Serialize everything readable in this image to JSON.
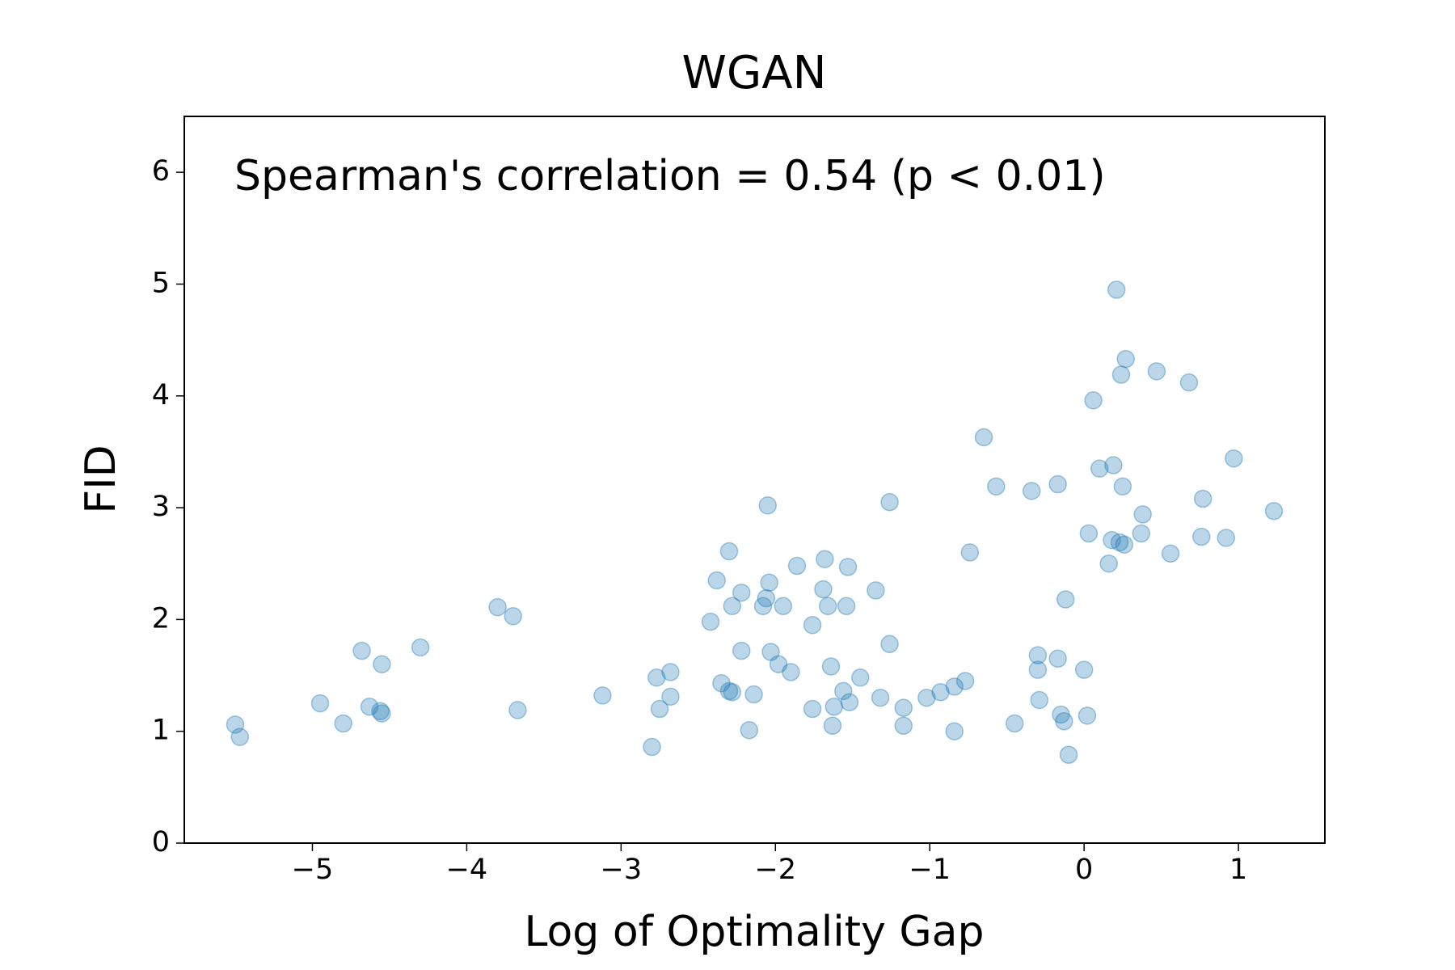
{
  "chart_data": {
    "type": "scatter",
    "title": "WGAN",
    "annotation": "Spearman's correlation = 0.54 (p < 0.01)",
    "xlabel": "Log of Optimality Gap",
    "ylabel": "FID",
    "color": "#1f77b4",
    "alpha": 0.3,
    "xlim": [
      -5.83,
      1.56
    ],
    "ylim": [
      0,
      6.5
    ],
    "xticks": [
      {
        "value": -5,
        "label": "−5"
      },
      {
        "value": -4,
        "label": "−4"
      },
      {
        "value": -3,
        "label": "−3"
      },
      {
        "value": -2,
        "label": "−2"
      },
      {
        "value": -1,
        "label": "−1"
      },
      0,
      1
    ],
    "yticks": [
      0,
      1,
      2,
      3,
      4,
      5,
      6
    ],
    "x": [
      -5.5,
      -5.47,
      -4.95,
      -4.8,
      -4.68,
      -4.63,
      -4.56,
      -4.55,
      -4.55,
      -4.3,
      -3.8,
      -3.7,
      -3.67,
      -3.12,
      -2.8,
      -2.77,
      -2.75,
      -2.68,
      -2.68,
      -2.42,
      -2.38,
      -2.35,
      -2.3,
      -2.3,
      -2.28,
      -2.28,
      -2.22,
      -2.22,
      -2.17,
      -2.14,
      -2.05,
      -2.08,
      -2.06,
      -2.04,
      -2.03,
      -1.98,
      -1.95,
      -1.9,
      -1.86,
      -1.76,
      -1.76,
      -1.69,
      -1.68,
      -1.66,
      -1.64,
      -1.63,
      -1.62,
      -1.56,
      -1.54,
      -1.53,
      -1.52,
      -1.45,
      -1.35,
      -1.32,
      -1.26,
      -1.26,
      -1.17,
      -1.17,
      -1.02,
      -0.93,
      -0.84,
      -0.84,
      -0.77,
      -0.74,
      -0.65,
      -0.57,
      -0.45,
      -0.34,
      -0.3,
      -0.3,
      -0.29,
      -0.17,
      -0.17,
      -0.15,
      -0.13,
      -0.12,
      -0.1,
      0.0,
      0.02,
      0.03,
      0.06,
      0.1,
      0.16,
      0.18,
      0.19,
      0.21,
      0.23,
      0.24,
      0.25,
      0.26,
      0.27,
      0.37,
      0.38,
      0.47,
      0.56,
      0.68,
      0.76,
      0.77,
      0.92,
      0.97,
      1.23
    ],
    "values": [
      1.06,
      0.95,
      1.25,
      1.07,
      1.72,
      1.22,
      1.18,
      1.6,
      1.16,
      1.75,
      2.11,
      2.03,
      1.19,
      1.32,
      0.86,
      1.48,
      1.2,
      1.53,
      1.31,
      1.98,
      2.35,
      1.43,
      2.61,
      1.36,
      1.35,
      2.12,
      2.24,
      1.72,
      1.01,
      1.33,
      3.02,
      2.12,
      2.19,
      2.33,
      1.71,
      1.6,
      2.12,
      1.53,
      2.48,
      1.2,
      1.95,
      2.27,
      2.54,
      2.12,
      1.58,
      1.05,
      1.22,
      1.36,
      2.12,
      2.47,
      1.26,
      1.48,
      2.26,
      1.3,
      3.05,
      1.78,
      1.21,
      1.05,
      1.3,
      1.35,
      1.4,
      1.0,
      1.45,
      2.6,
      3.63,
      3.19,
      1.07,
      3.15,
      1.68,
      1.55,
      1.28,
      3.21,
      1.65,
      1.15,
      1.09,
      2.18,
      0.79,
      1.55,
      1.14,
      2.77,
      3.96,
      3.35,
      2.5,
      2.71,
      3.38,
      4.95,
      2.69,
      4.19,
      3.19,
      2.67,
      4.33,
      2.77,
      2.94,
      4.22,
      2.59,
      4.12,
      2.74,
      3.08,
      2.73,
      3.44,
      2.97
    ]
  }
}
